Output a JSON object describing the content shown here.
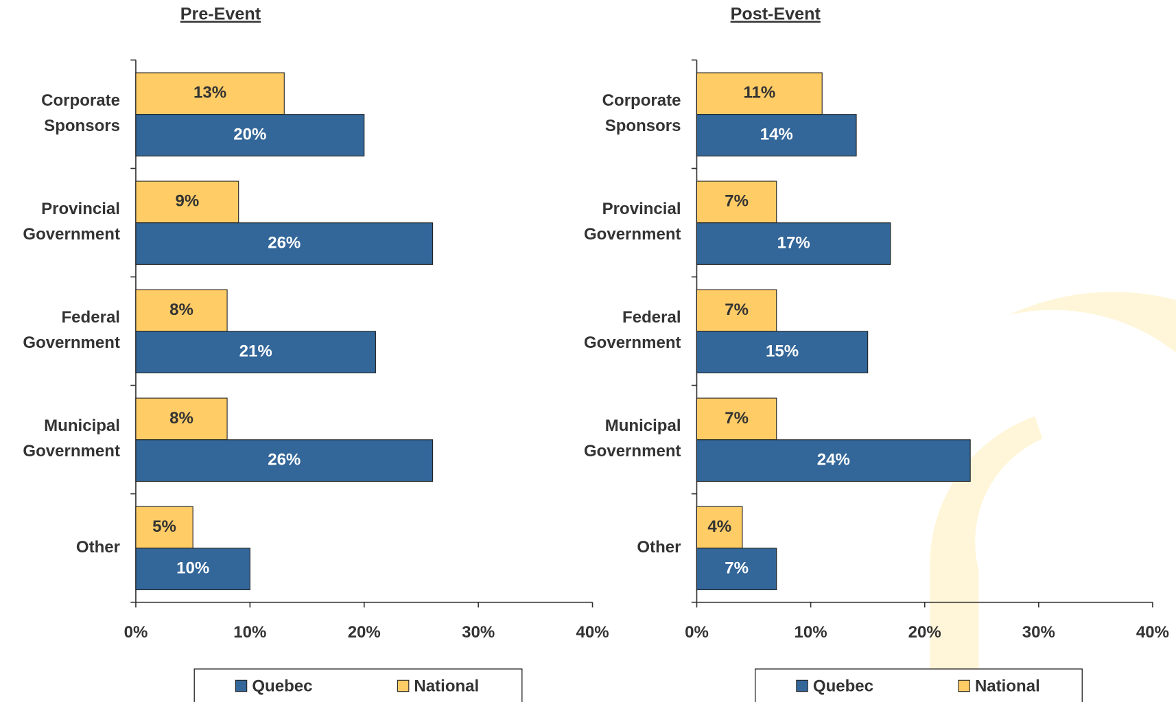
{
  "chart_data": [
    {
      "type": "bar",
      "orientation": "horizontal",
      "title": "Pre-Event",
      "categories": [
        "Corporate Sponsors",
        "Provincial Government",
        "Federal Government",
        "Municipal Government",
        "Other"
      ],
      "series": [
        {
          "name": "Quebec",
          "color": "#336699",
          "values": [
            20,
            26,
            21,
            26,
            10
          ],
          "value_labels": [
            "20%",
            "26%",
            "21%",
            "26%",
            "10%"
          ]
        },
        {
          "name": "National",
          "color": "#FFCC66",
          "values": [
            13,
            9,
            8,
            8,
            5
          ],
          "value_labels": [
            "13%",
            "9%",
            "8%",
            "8%",
            "5%"
          ]
        }
      ],
      "xlim": [
        0,
        40
      ],
      "xticks": [
        {
          "value": 0,
          "label": "0%"
        },
        {
          "value": 10,
          "label": "10%"
        },
        {
          "value": 20,
          "label": "20%"
        },
        {
          "value": 30,
          "label": "30%"
        },
        {
          "value": 40,
          "label": "40%"
        }
      ],
      "legend": "bottom"
    },
    {
      "type": "bar",
      "orientation": "horizontal",
      "title": "Post-Event",
      "categories": [
        "Corporate Sponsors",
        "Provincial Government",
        "Federal Government",
        "Municipal Government",
        "Other"
      ],
      "series": [
        {
          "name": "Quebec",
          "color": "#336699",
          "values": [
            14,
            17,
            15,
            24,
            7
          ],
          "value_labels": [
            "14%",
            "17%",
            "15%",
            "24%",
            "7%"
          ]
        },
        {
          "name": "National",
          "color": "#FFCC66",
          "values": [
            11,
            7,
            7,
            7,
            4
          ],
          "value_labels": [
            "11%",
            "7%",
            "7%",
            "7%",
            "4%"
          ]
        }
      ],
      "xlim": [
        0,
        40
      ],
      "xticks": [
        {
          "value": 0,
          "label": "0%"
        },
        {
          "value": 10,
          "label": "10%"
        },
        {
          "value": 20,
          "label": "20%"
        },
        {
          "value": 30,
          "label": "30%"
        },
        {
          "value": 40,
          "label": "40%"
        }
      ],
      "legend": "bottom"
    }
  ]
}
